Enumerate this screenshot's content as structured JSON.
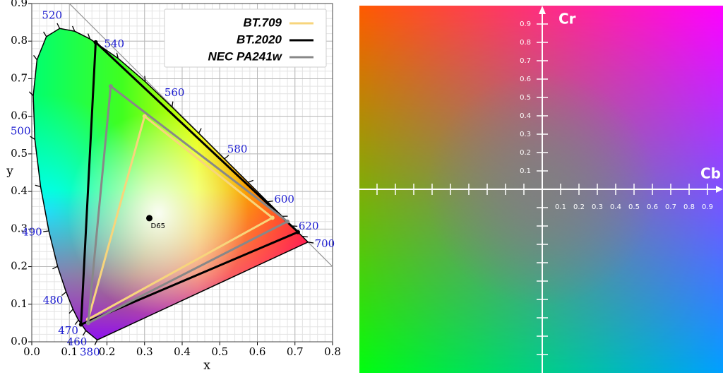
{
  "chart_data": [
    {
      "type": "chromaticity",
      "xlabel": "x",
      "ylabel": "y",
      "xlim": [
        0,
        0.8
      ],
      "ylim": [
        0,
        0.9
      ],
      "xticks": [
        {
          "value": 0,
          "label": "0.0"
        },
        0.1,
        0.2,
        0.3,
        0.4,
        0.5,
        0.6,
        0.7,
        0.8
      ],
      "yticks": [
        {
          "value": 0,
          "label": "0.0"
        },
        0.1,
        0.2,
        0.3,
        0.4,
        0.5,
        0.6,
        0.7,
        0.8,
        0.9
      ],
      "grid": true,
      "locus": {
        "x": [
          0.1741,
          0.144,
          0.1241,
          0.1096,
          0.0913,
          0.0687,
          0.0454,
          0.0235,
          0.0082,
          0.0039,
          0.0139,
          0.0389,
          0.0743,
          0.1142,
          0.1547,
          0.2296,
          0.3016,
          0.3731,
          0.4441,
          0.5125,
          0.5752,
          0.627,
          0.6658,
          0.6915,
          0.719,
          0.7347
        ],
        "y": [
          0.005,
          0.0297,
          0.0578,
          0.0868,
          0.1327,
          0.2007,
          0.295,
          0.4127,
          0.5384,
          0.6548,
          0.7502,
          0.812,
          0.8338,
          0.8262,
          0.8059,
          0.7543,
          0.6923,
          0.6245,
          0.5547,
          0.4866,
          0.4242,
          0.3725,
          0.334,
          0.3083,
          0.2809,
          0.2653
        ],
        "labels": [
          380,
          460,
          470,
          null,
          480,
          null,
          490,
          null,
          500,
          null,
          null,
          null,
          520,
          null,
          null,
          540,
          null,
          560,
          null,
          580,
          null,
          600,
          null,
          620,
          null,
          700
        ]
      },
      "white_point": {
        "label": "D65",
        "x": 0.3127,
        "y": 0.329
      },
      "legend": "upper right",
      "series": [
        {
          "name": "BT.709",
          "color": "#f7d57c",
          "x": [
            0.64,
            0.3,
            0.15
          ],
          "y": [
            0.33,
            0.6,
            0.06
          ]
        },
        {
          "name": "BT.2020",
          "color": "#000000",
          "x": [
            0.708,
            0.17,
            0.131
          ],
          "y": [
            0.292,
            0.797,
            0.046
          ]
        },
        {
          "name": "NEC PA241w",
          "color": "#888888",
          "x": [
            0.68,
            0.21,
            0.15
          ],
          "y": [
            0.32,
            0.68,
            0.05
          ]
        }
      ]
    },
    {
      "type": "cbcr",
      "xlabel": "Cb",
      "ylabel": "Cr",
      "xlim": [
        -1,
        1
      ],
      "ylim": [
        -1,
        1
      ],
      "xticks": [
        {
          "value": -0.9,
          "label": null
        },
        {
          "value": -0.8,
          "label": null
        },
        {
          "value": -0.7,
          "label": null
        },
        {
          "value": -0.6,
          "label": null
        },
        {
          "value": -0.5,
          "label": null
        },
        {
          "value": -0.4,
          "label": null
        },
        {
          "value": -0.3,
          "label": null
        },
        {
          "value": -0.2,
          "label": null
        },
        {
          "value": -0.1,
          "label": null
        },
        0.1,
        0.2,
        0.3,
        0.4,
        0.5,
        0.6,
        0.7,
        0.8,
        0.9
      ],
      "yticks": [
        {
          "value": -0.9,
          "label": null
        },
        {
          "value": -0.8,
          "label": null
        },
        {
          "value": -0.7,
          "label": null
        },
        {
          "value": -0.6,
          "label": null
        },
        {
          "value": -0.5,
          "label": null
        },
        {
          "value": -0.4,
          "label": null
        },
        {
          "value": -0.3,
          "label": null
        },
        {
          "value": -0.2,
          "label": null
        },
        {
          "value": -0.1,
          "label": null
        },
        0.1,
        0.2,
        0.3,
        0.4,
        0.5,
        0.6,
        0.7,
        0.8,
        0.9
      ]
    }
  ]
}
